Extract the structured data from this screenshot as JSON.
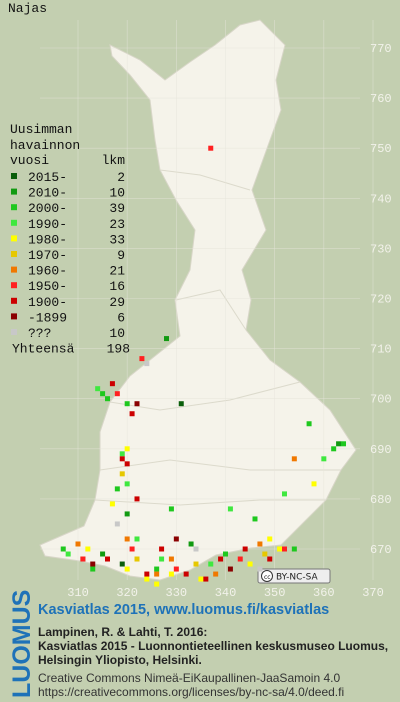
{
  "title": "Najas",
  "legend": {
    "heading": [
      "Uusimman",
      "havainnon"
    ],
    "col_year": "vuosi",
    "col_count": "lkm",
    "items": [
      {
        "label": "2015-",
        "count": 2,
        "color": "#0a5e0a",
        "squares": [
          [
            331,
            699
          ],
          [
            319,
            667
          ]
        ]
      },
      {
        "label": "2010-",
        "count": 10,
        "color": "#119a11",
        "squares": [
          [
            328,
            712
          ],
          [
            363,
            691
          ],
          [
            315,
            669
          ],
          [
            333,
            671
          ],
          [
            320,
            677
          ]
        ]
      },
      {
        "label": "2000-",
        "count": 39,
        "color": "#1ec81e",
        "squares": [
          [
            315,
            701
          ],
          [
            316,
            700
          ],
          [
            320,
            699
          ],
          [
            362,
            690
          ],
          [
            364,
            691
          ],
          [
            357,
            695
          ],
          [
            329,
            678
          ],
          [
            311,
            668
          ],
          [
            307,
            670
          ],
          [
            318,
            682
          ],
          [
            326,
            666
          ],
          [
            340,
            669
          ],
          [
            346,
            676
          ],
          [
            354,
            670
          ],
          [
            313,
            666
          ]
        ]
      },
      {
        "label": "1990-",
        "count": 23,
        "color": "#3fe83f",
        "squares": [
          [
            314,
            702
          ],
          [
            319,
            689
          ],
          [
            320,
            683
          ],
          [
            327,
            668
          ],
          [
            308,
            669
          ],
          [
            352,
            681
          ],
          [
            337,
            667
          ],
          [
            360,
            688
          ],
          [
            322,
            672
          ],
          [
            341,
            678
          ]
        ]
      },
      {
        "label": "1980-",
        "count": 33,
        "color": "#ffff00",
        "squares": [
          [
            320,
            690
          ],
          [
            358,
            683
          ],
          [
            324,
            664
          ],
          [
            317,
            679
          ],
          [
            351,
            670
          ],
          [
            345,
            667
          ],
          [
            329,
            665
          ],
          [
            320,
            666
          ],
          [
            312,
            670
          ],
          [
            335,
            664
          ],
          [
            349,
            672
          ],
          [
            326,
            663
          ]
        ]
      },
      {
        "label": "1970-",
        "count": 9,
        "color": "#e6c800",
        "squares": [
          [
            319,
            685
          ],
          [
            334,
            667
          ],
          [
            348,
            669
          ],
          [
            322,
            668
          ]
        ]
      },
      {
        "label": "1960-",
        "count": 21,
        "color": "#f07800",
        "squares": [
          [
            354,
            688
          ],
          [
            338,
            665
          ],
          [
            329,
            668
          ],
          [
            320,
            672
          ],
          [
            347,
            671
          ],
          [
            310,
            671
          ],
          [
            326,
            665
          ]
        ]
      },
      {
        "label": "1950-",
        "count": 16,
        "color": "#ff2020",
        "squares": [
          [
            337,
            750
          ],
          [
            323,
            708
          ],
          [
            318,
            701
          ],
          [
            330,
            666
          ],
          [
            343,
            668
          ],
          [
            311,
            668
          ],
          [
            321,
            670
          ],
          [
            352,
            670
          ]
        ]
      },
      {
        "label": "1900-",
        "count": 29,
        "color": "#cc0000",
        "squares": [
          [
            317,
            703
          ],
          [
            321,
            697
          ],
          [
            319,
            688
          ],
          [
            320,
            687
          ],
          [
            324,
            665
          ],
          [
            332,
            665
          ],
          [
            339,
            668
          ],
          [
            344,
            670
          ],
          [
            316,
            668
          ],
          [
            327,
            670
          ],
          [
            322,
            680
          ],
          [
            349,
            668
          ],
          [
            336,
            664
          ]
        ]
      },
      {
        "label": "-1899",
        "count": 6,
        "color": "#8a0000",
        "squares": [
          [
            322,
            699
          ],
          [
            313,
            667
          ],
          [
            330,
            672
          ],
          [
            341,
            666
          ]
        ]
      },
      {
        "label": "???",
        "count": 10,
        "color": "#c8c8c8",
        "squares": [
          [
            324,
            707
          ],
          [
            318,
            675
          ],
          [
            334,
            670
          ],
          [
            347,
            666
          ]
        ]
      }
    ],
    "total_label": "Yhteensä",
    "total": 198
  },
  "yticks": [
    770,
    760,
    750,
    740,
    730,
    720,
    710,
    700,
    690,
    680,
    670
  ],
  "xticks": [
    310,
    320,
    330,
    340,
    350,
    360,
    370
  ],
  "license_badge": "BY-NC-SA",
  "footer": {
    "logo": "LUOMUS",
    "link": "Kasviatlas 2015, www.luomus.fi/kasviatlas",
    "citation": [
      "Lampinen, R. & Lahti, T. 2016:",
      "Kasviatlas 2015 - Luonnontieteellinen keskusmuseo Luomus,",
      "Helsingin Yliopisto, Helsinki."
    ],
    "license": [
      "Creative Commons Nimeä-EiKaupallinen-JaaSamoin 4.0",
      "https://creativecommons.org/licenses/by-nc-sa/4.0/deed.fi"
    ]
  }
}
